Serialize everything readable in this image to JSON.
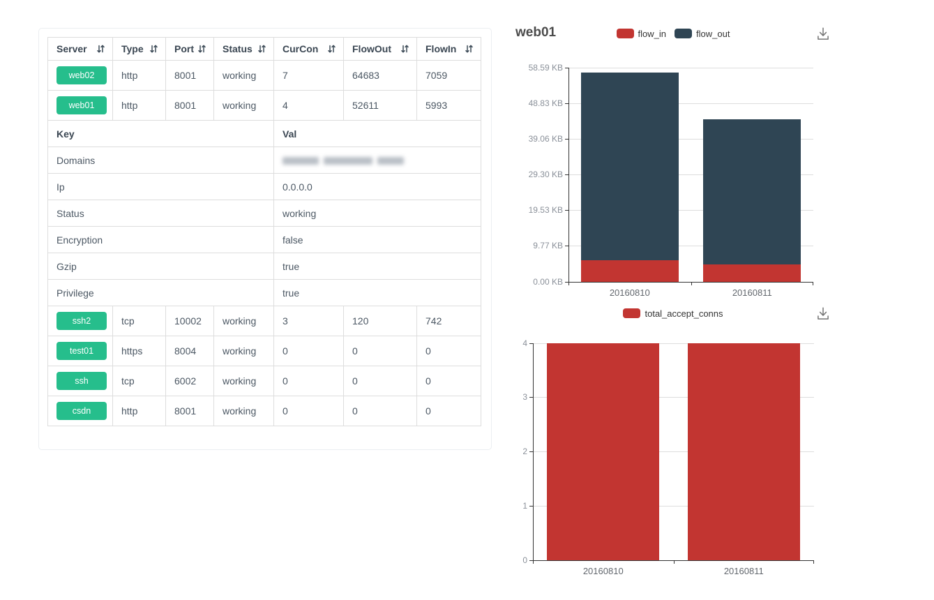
{
  "colors": {
    "badge_green": "#26be8c",
    "bar_red": "#c23531",
    "bar_dark": "#2f4554",
    "axis_line": "#333333",
    "grid_line": "#dddddd",
    "header_text": "#3a4652",
    "cell_text": "#4b5763"
  },
  "icons": {
    "sort": "sort-icon",
    "download": "download-icon"
  },
  "table": {
    "columns": [
      "Server",
      "Type",
      "Port",
      "Status",
      "CurCon",
      "FlowOut",
      "FlowIn"
    ],
    "rows_top": [
      {
        "server": "web02",
        "type": "http",
        "port": "8001",
        "status": "working",
        "curcon": "7",
        "flowout": "64683",
        "flowin": "7059"
      },
      {
        "server": "web01",
        "type": "http",
        "port": "8001",
        "status": "working",
        "curcon": "4",
        "flowout": "52611",
        "flowin": "5993"
      }
    ],
    "kv": {
      "key_header": "Key",
      "val_header": "Val",
      "rows": [
        {
          "key": "Domains",
          "value": "",
          "redacted": true
        },
        {
          "key": "Ip",
          "value": "0.0.0.0",
          "redacted": false
        },
        {
          "key": "Status",
          "value": "working",
          "redacted": false
        },
        {
          "key": "Encryption",
          "value": "false",
          "redacted": false
        },
        {
          "key": "Gzip",
          "value": "true",
          "redacted": false
        },
        {
          "key": "Privilege",
          "value": "true",
          "redacted": false
        }
      ]
    },
    "rows_bottom": [
      {
        "server": "ssh2",
        "type": "tcp",
        "port": "10002",
        "status": "working",
        "curcon": "3",
        "flowout": "120",
        "flowin": "742"
      },
      {
        "server": "test01",
        "type": "https",
        "port": "8004",
        "status": "working",
        "curcon": "0",
        "flowout": "0",
        "flowin": "0"
      },
      {
        "server": "ssh",
        "type": "tcp",
        "port": "6002",
        "status": "working",
        "curcon": "0",
        "flowout": "0",
        "flowin": "0"
      },
      {
        "server": "csdn",
        "type": "http",
        "port": "8001",
        "status": "working",
        "curcon": "0",
        "flowout": "0",
        "flowin": "0"
      }
    ]
  },
  "chart_data": [
    {
      "type": "bar",
      "stacked": true,
      "title": "web01",
      "categories": [
        "20160810",
        "20160811"
      ],
      "series": [
        {
          "name": "flow_in",
          "color": "#c23531",
          "values": [
            5993,
            4800
          ]
        },
        {
          "name": "flow_out",
          "color": "#2f4554",
          "values": [
            52611,
            40700
          ]
        }
      ],
      "xlabel": "",
      "ylabel": "",
      "ylim": [
        0,
        60000
      ],
      "yticks": [
        {
          "value": 0,
          "label": "0.00 KB"
        },
        {
          "value": 10000,
          "label": "9.77 KB"
        },
        {
          "value": 20000,
          "label": "19.53 KB"
        },
        {
          "value": 30000,
          "label": "29.30 KB"
        },
        {
          "value": 40000,
          "label": "39.06 KB"
        },
        {
          "value": 50000,
          "label": "48.83 KB"
        },
        {
          "value": 60000,
          "label": "58.59 KB"
        }
      ],
      "legend_position": "top-center",
      "grid": true,
      "bar_fraction": 0.8
    },
    {
      "type": "bar",
      "stacked": false,
      "title": "",
      "categories": [
        "20160810",
        "20160811"
      ],
      "series": [
        {
          "name": "total_accept_conns",
          "color": "#c23531",
          "values": [
            4,
            4
          ]
        }
      ],
      "xlabel": "",
      "ylabel": "",
      "ylim": [
        0,
        4
      ],
      "yticks": [
        {
          "value": 0,
          "label": "0"
        },
        {
          "value": 1,
          "label": "1"
        },
        {
          "value": 2,
          "label": "2"
        },
        {
          "value": 3,
          "label": "3"
        },
        {
          "value": 4,
          "label": "4"
        }
      ],
      "legend_position": "top-center",
      "grid": true,
      "bar_fraction": 0.8
    }
  ]
}
